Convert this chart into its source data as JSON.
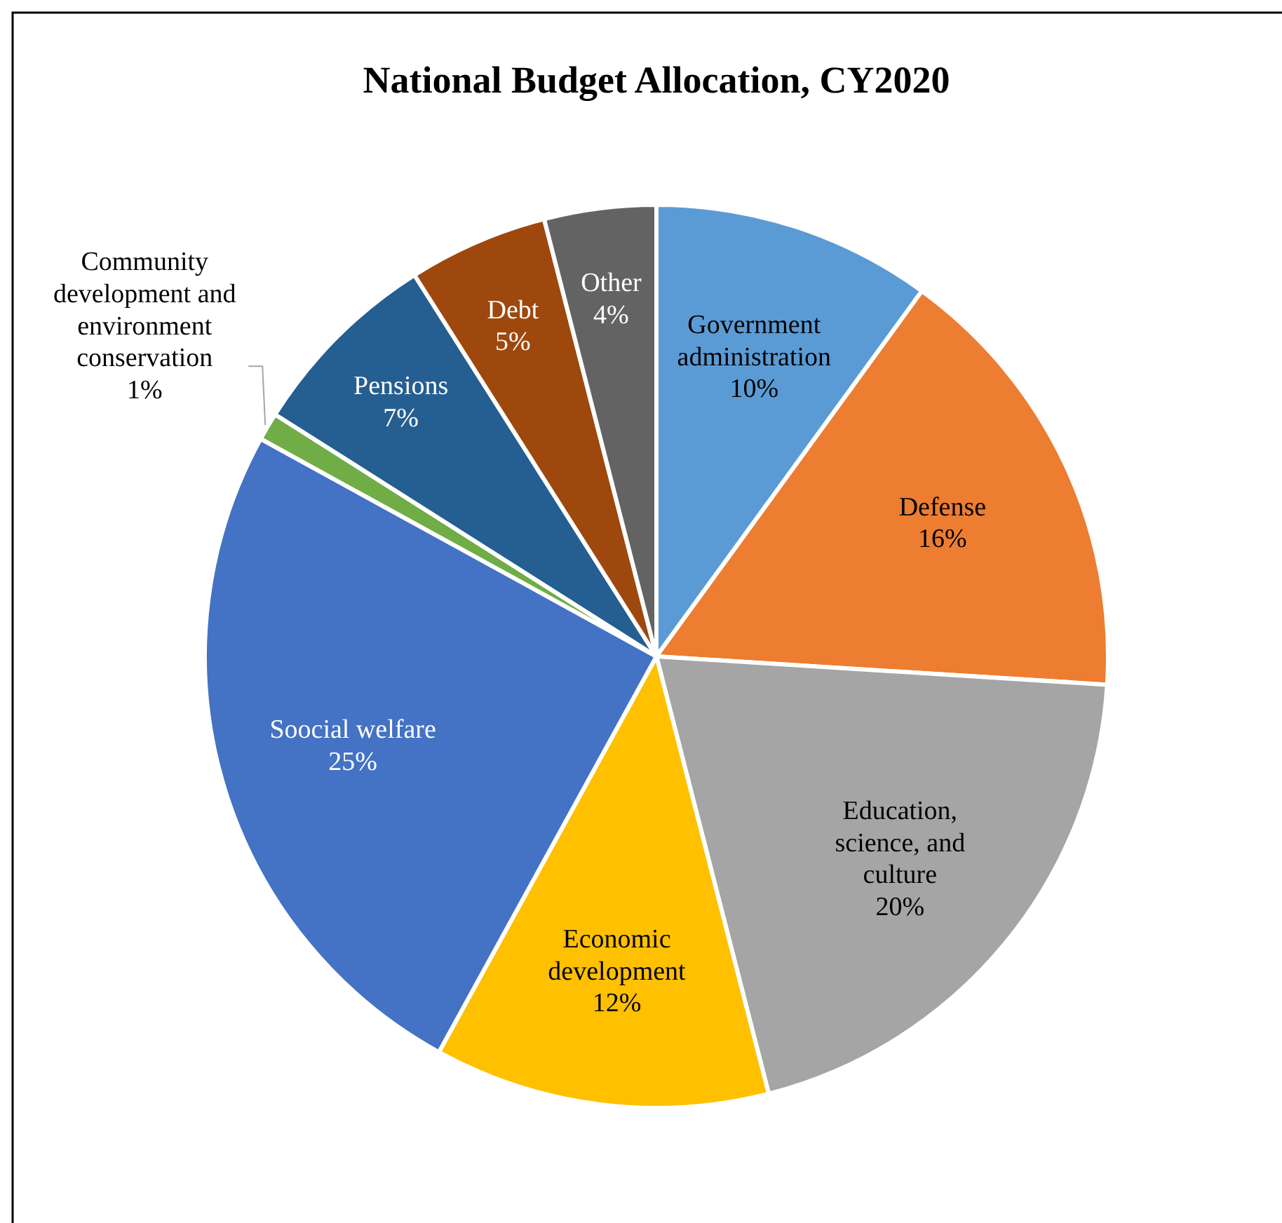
{
  "chart_data": {
    "type": "pie",
    "title": "National Budget Allocation, CY2020",
    "categories": [
      "Government administration",
      "Defense",
      "Education, science, and culture",
      "Economic development",
      "Soocial welfare",
      "Community development and environment conservation",
      "Pensions",
      "Debt",
      "Other"
    ],
    "values": [
      10,
      16,
      20,
      12,
      25,
      1,
      7,
      5,
      4
    ],
    "colors": [
      "#5b9bd5",
      "#ed7d31",
      "#a5a5a5",
      "#ffc000",
      "#4472c4",
      "#70ad47",
      "#255e91",
      "#9e480e",
      "#636363"
    ],
    "value_labels": [
      "10%",
      "16%",
      "20%",
      "12%",
      "25%",
      "1%",
      "7%",
      "5%",
      "4%"
    ]
  }
}
